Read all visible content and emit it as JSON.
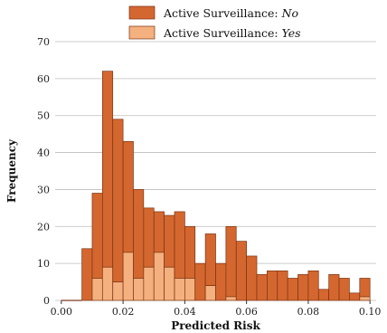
{
  "chart_data": {
    "type": "bar",
    "subtype": "stacked-histogram",
    "xlabel": "Predicted Risk",
    "ylabel": "Frequency",
    "xlim": [
      -0.002,
      0.102
    ],
    "ylim": [
      0,
      70
    ],
    "xticks": [
      "0.00",
      "0.02",
      "0.04",
      "0.06",
      "0.08",
      "0.10"
    ],
    "yticks": [
      "0",
      "10",
      "20",
      "30",
      "40",
      "50",
      "60",
      "70"
    ],
    "grid": true,
    "legend_position": "top",
    "bin_width": 0.00333,
    "bin_starts": [
      0.0,
      0.00333,
      0.00667,
      0.01,
      0.01333,
      0.01667,
      0.02,
      0.02333,
      0.02667,
      0.03,
      0.03333,
      0.03667,
      0.04,
      0.04333,
      0.04667,
      0.05,
      0.05333,
      0.05667,
      0.06,
      0.06333,
      0.06667,
      0.07,
      0.07333,
      0.07667,
      0.08,
      0.08333,
      0.08667,
      0.09,
      0.09333,
      0.09667
    ],
    "series": [
      {
        "name": "Active Surveillance:",
        "name_suffix": "No",
        "color": "#d4672f",
        "values": [
          0,
          0,
          14,
          23,
          53,
          44,
          30,
          24,
          16,
          11,
          14,
          18,
          14,
          10,
          14,
          10,
          19,
          16,
          12,
          7,
          8,
          8,
          6,
          7,
          8,
          3,
          7,
          6,
          2,
          5
        ]
      },
      {
        "name": "Active Surveillance:",
        "name_suffix": "Yes",
        "color": "#f4b07e",
        "values": [
          0,
          0,
          0,
          6,
          9,
          5,
          13,
          6,
          9,
          13,
          9,
          6,
          6,
          0,
          4,
          0,
          1,
          0,
          0,
          0,
          0,
          0,
          0,
          0,
          0,
          0,
          0,
          0,
          0,
          1
        ]
      }
    ],
    "totals": [
      0,
      0,
      14,
      29,
      62,
      49,
      43,
      30,
      25,
      24,
      23,
      24,
      20,
      10,
      18,
      10,
      20,
      16,
      12,
      7,
      8,
      8,
      6,
      7,
      8,
      3,
      7,
      6,
      2,
      6
    ]
  }
}
